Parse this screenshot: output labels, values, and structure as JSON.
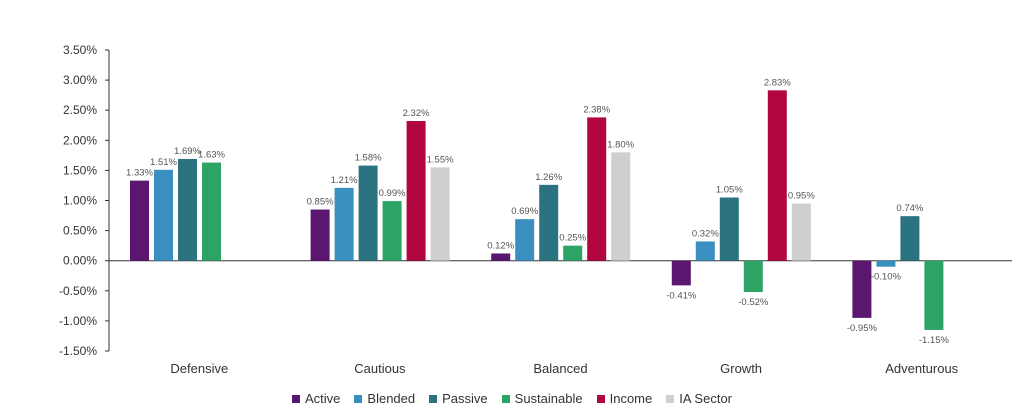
{
  "chart_data": {
    "type": "bar",
    "title": "",
    "xlabel": "",
    "ylabel": "",
    "ylim": [
      -1.5,
      3.5
    ],
    "ytick_step": 0.5,
    "y_tick_labels": [
      "3.50%",
      "3.00%",
      "2.50%",
      "2.00%",
      "1.50%",
      "1.00%",
      "0.50%",
      "0.00%",
      "-0.50%",
      "-1.00%",
      "-1.50%"
    ],
    "grid": false,
    "legend_position": "bottom",
    "categories": [
      "Defensive",
      "Cautious",
      "Balanced",
      "Growth",
      "Adventurous"
    ],
    "series": [
      {
        "name": "Active",
        "color": "#5b1670",
        "values": [
          1.33,
          0.85,
          0.12,
          -0.41,
          -0.95
        ]
      },
      {
        "name": "Blended",
        "color": "#3a8fc1",
        "values": [
          1.51,
          1.21,
          0.69,
          0.32,
          -0.1
        ]
      },
      {
        "name": "Passive",
        "color": "#2b7380",
        "values": [
          1.69,
          1.58,
          1.26,
          1.05,
          0.74
        ]
      },
      {
        "name": "Sustainable",
        "color": "#2ea366",
        "values": [
          1.63,
          0.99,
          0.25,
          -0.52,
          -1.15
        ]
      },
      {
        "name": "Income",
        "color": "#b2063f",
        "values": [
          null,
          2.32,
          2.38,
          2.83,
          null
        ]
      },
      {
        "name": "IA Sector",
        "color": "#cfcfcf",
        "values": [
          null,
          1.55,
          1.8,
          0.95,
          null
        ]
      }
    ],
    "data_labels": [
      [
        "1.33%",
        "0.85%",
        "0.12%",
        "-0.41%",
        "-0.95%"
      ],
      [
        "1.51%",
        "1.21%",
        "0.69%",
        "0.32%",
        "-0.10%"
      ],
      [
        "1.69%",
        "1.58%",
        "1.26%",
        "1.05%",
        "0.74%"
      ],
      [
        "1.63%",
        "0.99%",
        "0.25%",
        "-0.52%",
        "-1.15%"
      ],
      [
        null,
        "2.32%",
        "2.38%",
        "2.83%",
        null
      ],
      [
        null,
        "1.55%",
        "1.80%",
        "0.95%",
        null
      ]
    ]
  }
}
